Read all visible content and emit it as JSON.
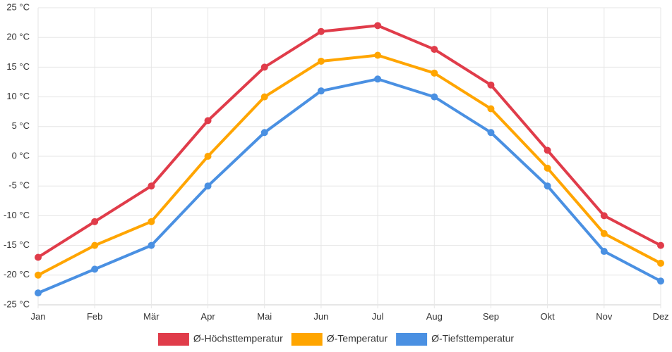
{
  "chart_data": {
    "type": "line",
    "categories": [
      "Jan",
      "Feb",
      "Mär",
      "Apr",
      "Mai",
      "Jun",
      "Jul",
      "Aug",
      "Sep",
      "Okt",
      "Nov",
      "Dez"
    ],
    "y_unit": "°C",
    "ylim": [
      -25,
      25
    ],
    "ytick_step": 5,
    "grid": true,
    "legend_position": "bottom",
    "series": [
      {
        "name": "Ø-Höchsttemperatur",
        "color": "#e03c4a",
        "values": [
          -17,
          -11,
          -5,
          6,
          15,
          21,
          22,
          18,
          12,
          1,
          -10,
          -15
        ]
      },
      {
        "name": "Ø-Temperatur",
        "color": "#ffa500",
        "values": [
          -20,
          -15,
          -11,
          0,
          10,
          16,
          17,
          14,
          8,
          -2,
          -13,
          -18
        ]
      },
      {
        "name": "Ø-Tiefsttemperatur",
        "color": "#4a90e2",
        "values": [
          -23,
          -19,
          -15,
          -5,
          4,
          11,
          13,
          10,
          4,
          -5,
          -16,
          -21
        ]
      }
    ]
  }
}
